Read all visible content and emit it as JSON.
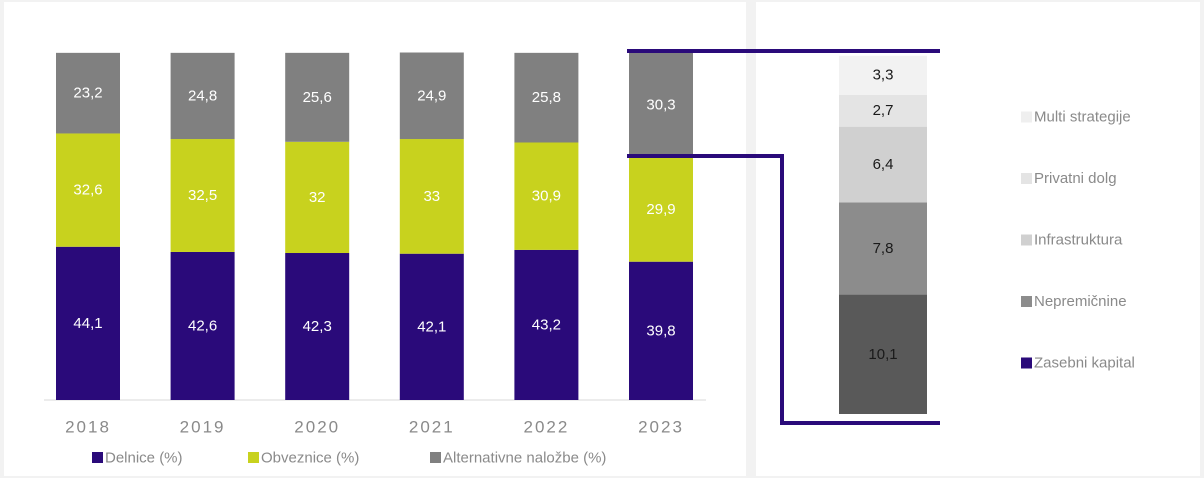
{
  "chart_data": [
    {
      "type": "bar",
      "stacked": true,
      "categories": [
        "2018",
        "2019",
        "2020",
        "2021",
        "2022",
        "2023"
      ],
      "series": [
        {
          "name": "Delnice (%)",
          "color": "#2a0a7a",
          "label_color": "#ffffff",
          "values": [
            44.1,
            42.6,
            42.3,
            42.1,
            43.2,
            39.8
          ],
          "labels": [
            "44,1",
            "42,6",
            "42,3",
            "42,1",
            "43,2",
            "39,8"
          ]
        },
        {
          "name": "Obveznice (%)",
          "color": "#c8d21e",
          "label_color": "#ffffff",
          "values": [
            32.6,
            32.5,
            32,
            33,
            30.9,
            29.9
          ],
          "labels": [
            "32,6",
            "32,5",
            "32",
            "33",
            "30,9",
            "29,9"
          ]
        },
        {
          "name": "Alternativne naložbe (%)",
          "color": "#808080",
          "label_color": "#ffffff",
          "values": [
            23.2,
            24.8,
            25.6,
            24.9,
            25.8,
            30.3
          ],
          "labels": [
            "23,2",
            "24,8",
            "25,6",
            "24,9",
            "25,8",
            "30,3"
          ]
        }
      ],
      "legend_position": "bottom",
      "grid": false
    },
    {
      "type": "bar",
      "stacked": true,
      "categories": [
        "2023"
      ],
      "series": [
        {
          "name": "Zasebni kapital",
          "color": "#595959",
          "label_color": "#1a1a1a",
          "values": [
            10.1
          ],
          "labels": [
            "10,1"
          ]
        },
        {
          "name": "Nepremičnine",
          "color": "#8c8c8c",
          "label_color": "#1a1a1a",
          "values": [
            7.8
          ],
          "labels": [
            "7,8"
          ]
        },
        {
          "name": "Infrastruktura",
          "color": "#d0d0d0",
          "label_color": "#1a1a1a",
          "values": [
            6.4
          ],
          "labels": [
            "6,4"
          ]
        },
        {
          "name": "Privatni dolg",
          "color": "#e4e4e4",
          "label_color": "#1a1a1a",
          "values": [
            2.7
          ],
          "labels": [
            "2,7"
          ]
        },
        {
          "name": "Multi strategije",
          "color": "#f2f2f2",
          "label_color": "#1a1a1a",
          "values": [
            3.3
          ],
          "labels": [
            "3,3"
          ]
        }
      ],
      "legend": {
        "position": "right",
        "items": [
          {
            "name": "Multi strategije",
            "color": "#efefef"
          },
          {
            "name": "Privatni dolg",
            "color": "#e4e4e4"
          },
          {
            "name": "Infrastruktura",
            "color": "#d0d0d0"
          },
          {
            "name": "Nepremičnine",
            "color": "#8c8c8c"
          },
          {
            "name": "Zasebni kapital",
            "color": "#2a0a7a"
          }
        ]
      },
      "connector_color": "#2a0a7a"
    }
  ]
}
